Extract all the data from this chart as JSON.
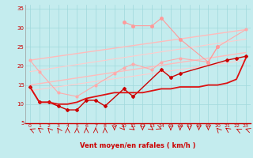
{
  "xlabel": "Vent moyen/en rafales ( km/h )",
  "xlim": [
    -0.5,
    23.5
  ],
  "ylim": [
    5,
    36
  ],
  "xticks": [
    0,
    1,
    2,
    3,
    4,
    5,
    6,
    7,
    8,
    9,
    10,
    11,
    12,
    13,
    14,
    15,
    16,
    17,
    18,
    19,
    20,
    21,
    22,
    23
  ],
  "yticks": [
    5,
    10,
    15,
    20,
    25,
    30,
    35
  ],
  "bg_color": "#c4ecee",
  "grid_color": "#a0d8dc",
  "line_pink_top": {
    "x": [
      0,
      23
    ],
    "y": [
      21.5,
      29.5
    ],
    "color": "#ffbbbb",
    "lw": 1.0
  },
  "line_pink_bot": {
    "x": [
      0,
      23
    ],
    "y": [
      15.0,
      23.5
    ],
    "color": "#ffbbbb",
    "lw": 1.0
  },
  "line_pink_mid_top": {
    "x": [
      0,
      23
    ],
    "y": [
      18.5,
      27.0
    ],
    "color": "#ffcccc",
    "lw": 0.8
  },
  "line_pink_mid_bot": {
    "x": [
      0,
      23
    ],
    "y": [
      13.5,
      21.5
    ],
    "color": "#ffcccc",
    "lw": 0.8
  },
  "series_pink_zigzag": {
    "x": [
      0,
      1,
      3,
      5,
      7,
      9,
      10,
      11,
      13,
      14,
      16,
      19,
      20,
      23
    ],
    "y": [
      21.5,
      18.5,
      13.0,
      12.0,
      15.0,
      18.0,
      19.5,
      20.5,
      19.0,
      21.0,
      22.0,
      21.0,
      25.0,
      29.5
    ],
    "color": "#ffaaaa",
    "lw": 0.8,
    "ms": 2.0
  },
  "series_deep_pink_upper": {
    "x": [
      10,
      11,
      13,
      14,
      16,
      19,
      20
    ],
    "y": [
      31.5,
      30.5,
      30.5,
      32.5,
      27.0,
      21.0,
      25.0
    ],
    "color": "#ff9999",
    "lw": 0.8,
    "ms": 2.5
  },
  "series_dark_red_zigzag": {
    "x": [
      0,
      1,
      2,
      3,
      4,
      5,
      6,
      7,
      8,
      10,
      11,
      14,
      15,
      16,
      21,
      22,
      23
    ],
    "y": [
      14.5,
      10.5,
      10.5,
      9.5,
      8.5,
      8.5,
      11.0,
      11.0,
      9.5,
      14.0,
      12.0,
      19.0,
      17.0,
      18.0,
      21.5,
      22.0,
      22.5
    ],
    "color": "#cc0000",
    "lw": 1.0,
    "ms": 2.0
  },
  "series_dark_red_smooth": {
    "x": [
      0,
      1,
      2,
      3,
      4,
      5,
      6,
      7,
      8,
      9,
      10,
      11,
      12,
      13,
      14,
      15,
      16,
      17,
      18,
      19,
      20,
      21,
      22,
      23
    ],
    "y": [
      14.5,
      10.5,
      10.5,
      10.0,
      10.0,
      10.5,
      11.5,
      12.0,
      12.5,
      13.0,
      13.0,
      13.0,
      13.0,
      13.5,
      14.0,
      14.0,
      14.5,
      14.5,
      14.5,
      15.0,
      15.0,
      15.5,
      16.5,
      22.0
    ],
    "color": "#dd1111",
    "lw": 1.3
  },
  "wind_arrows": {
    "x": [
      0,
      1,
      2,
      3,
      4,
      5,
      6,
      7,
      8,
      9,
      10,
      11,
      12,
      13,
      14,
      15,
      16,
      17,
      18,
      19,
      20,
      21,
      22,
      23
    ],
    "angles_deg": [
      225,
      210,
      200,
      195,
      180,
      180,
      180,
      180,
      180,
      0,
      20,
      30,
      0,
      30,
      45,
      0,
      0,
      0,
      0,
      0,
      200,
      210,
      220,
      230
    ]
  }
}
